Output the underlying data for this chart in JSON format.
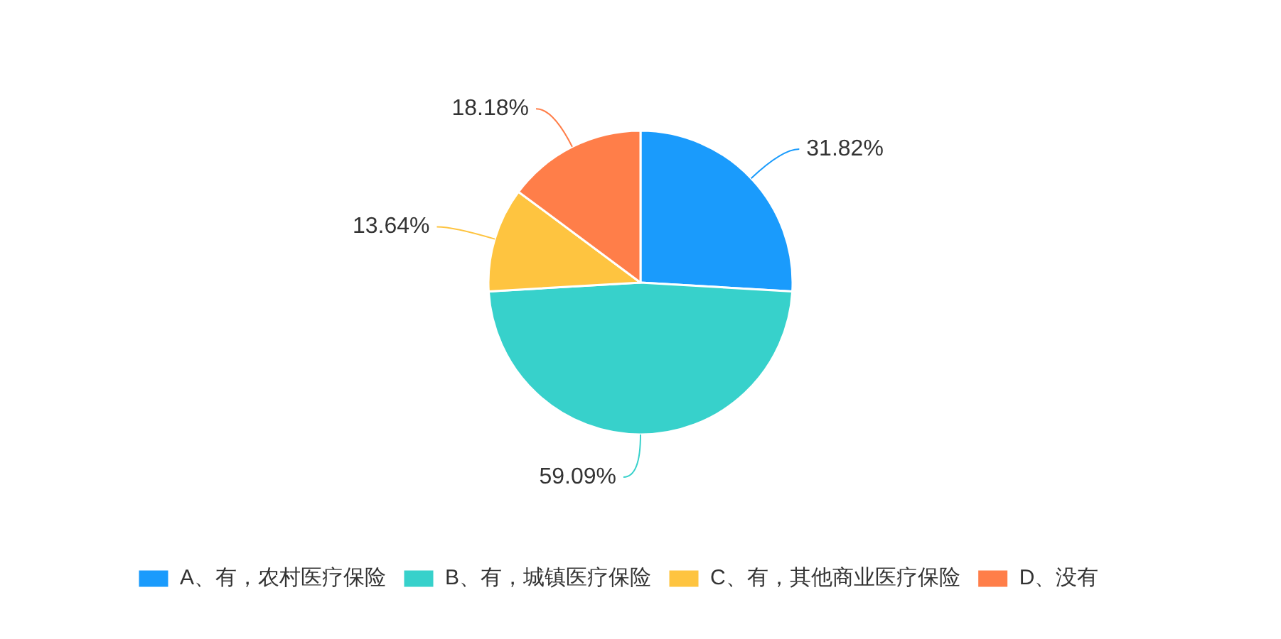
{
  "chart_data": {
    "type": "pie",
    "categories": [
      "A、有，农村医疗保险",
      "B、有，城镇医疗保险",
      "C、有，其他商业医疗保险",
      "D、没有"
    ],
    "values": [
      31.82,
      59.09,
      13.64,
      18.18
    ],
    "value_labels": [
      "31.82%",
      "59.09%",
      "13.64%",
      "18.18%"
    ],
    "colors": [
      "#1a9bfc",
      "#37d1cb",
      "#fec440",
      "#ff7e49"
    ],
    "legend": "bottom"
  }
}
